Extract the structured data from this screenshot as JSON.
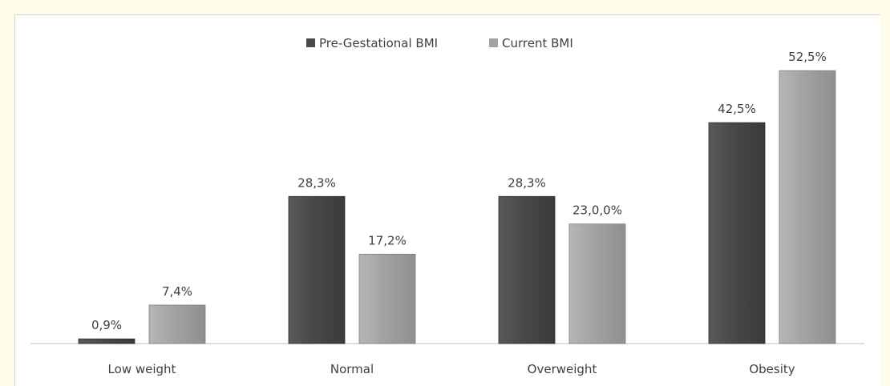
{
  "chart_data": {
    "type": "bar",
    "categories": [
      "Low weight",
      "Normal",
      "Overweight",
      "Obesity"
    ],
    "series": [
      {
        "name": "Pre-Gestational BMI",
        "values": [
          0.9,
          28.3,
          28.3,
          42.5
        ],
        "labels": [
          "0,9%",
          "28,3%",
          "28,3%",
          "42,5%"
        ],
        "color": "#4a4a4a"
      },
      {
        "name": "Current  BMI",
        "values": [
          7.4,
          17.2,
          23.0,
          52.5
        ],
        "labels": [
          "7,4%",
          "17,2%",
          "23,0,0%",
          "52,5%"
        ],
        "color": "#a3a3a3"
      }
    ],
    "ylim": [
      0,
      57
    ],
    "legend_position": "top-center",
    "grid": false
  }
}
